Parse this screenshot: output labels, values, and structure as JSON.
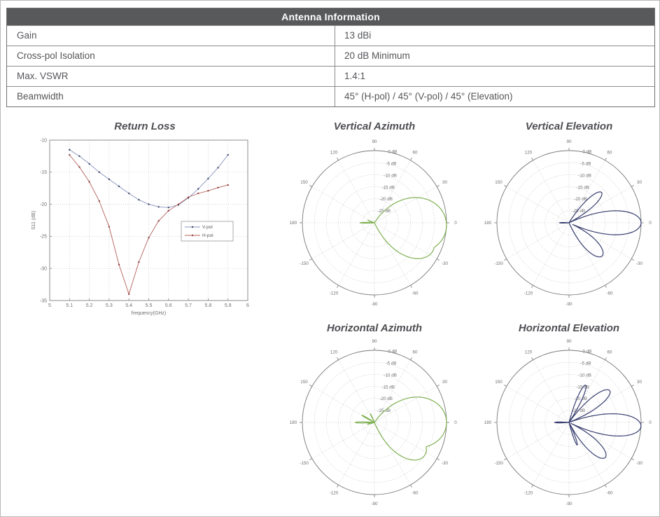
{
  "antenna_table": {
    "title": "Antenna Information",
    "rows": [
      {
        "label": "Gain",
        "value": "13 dBi"
      },
      {
        "label": "Cross-pol Isolation",
        "value": "20 dB Minimum"
      },
      {
        "label": "Max. VSWR",
        "value": "1.4:1"
      },
      {
        "label": "Beamwidth",
        "value": "45° (H-pol) / 45° (V-pol) / 45° (Elevation)"
      }
    ]
  },
  "colors": {
    "header_bg": "#58595B",
    "table_border": "#8A8C8E",
    "table_text": "#55565A",
    "title_text": "#4E4F53",
    "green": "#7FB052",
    "navy": "#373E6F",
    "axis": "#8C8C8C",
    "grid": "#C9C9C9",
    "tick_text": "#6E6E6E",
    "polar_grid": "#B5B5B5",
    "polar_outline": "#777777"
  },
  "chart_data": [
    {
      "id": "return_loss",
      "type": "line",
      "title": "Return Loss",
      "xlabel": "frequency(GHz)",
      "ylabel": "S11 (dB)",
      "xlim": [
        5,
        6
      ],
      "ylim": [
        -35,
        -10
      ],
      "xticks": [
        "5",
        "5.1",
        "5.2",
        "5.3",
        "5.4",
        "5.5",
        "5.6",
        "5.7",
        "5.8",
        "5.9",
        "6"
      ],
      "yticks": [
        "-10",
        "-15",
        "-20",
        "-25",
        "-30",
        "-35"
      ],
      "grid": true,
      "legend_position": "right-middle",
      "x": [
        5.1,
        5.15,
        5.2,
        5.25,
        5.3,
        5.35,
        5.4,
        5.45,
        5.5,
        5.55,
        5.6,
        5.65,
        5.7,
        5.75,
        5.8,
        5.85,
        5.9
      ],
      "series": [
        {
          "name": "V-pol",
          "color": "#8893BE",
          "marker_color": "#3C4566",
          "values": [
            -11.5,
            -12.5,
            -13.7,
            -15.0,
            -16.1,
            -17.2,
            -18.3,
            -19.3,
            -20.0,
            -20.4,
            -20.5,
            -20.1,
            -19.0,
            -17.6,
            -16.0,
            -14.3,
            -12.3
          ]
        },
        {
          "name": "H-pol",
          "color": "#B3615D",
          "marker_color": "#8F4340",
          "values": [
            -12.3,
            -14.2,
            -16.5,
            -19.5,
            -23.5,
            -29.4,
            -34.0,
            -29.0,
            -25.2,
            -22.6,
            -21.0,
            -20.0,
            -18.9,
            -18.3,
            -17.9,
            -17.4,
            -17.0
          ]
        }
      ]
    },
    {
      "id": "vertical_azimuth",
      "type": "polar",
      "title": "Vertical Azimuth",
      "color": "#7FB052",
      "rmax_db": 0,
      "rmin_db": -30,
      "angle_labels": [
        "0",
        "30",
        "60",
        "90",
        "120",
        "150",
        "180",
        "-150",
        "-120",
        "-90",
        "-60",
        "-30"
      ],
      "radial_labels": [
        "0 dB",
        "-5 dB",
        "-10 dB",
        "-15 dB",
        "-20 dB",
        "-25 dB"
      ],
      "lobes": [
        {
          "angle": -3,
          "peak_db": 0,
          "width_deg": 60
        },
        {
          "angle": -25,
          "peak_db": -3,
          "width_deg": 42
        },
        {
          "angle": 180,
          "peak_db": -24,
          "width_deg": 9
        },
        {
          "angle": 160,
          "peak_db": -27,
          "width_deg": 8
        }
      ]
    },
    {
      "id": "vertical_elevation",
      "type": "polar",
      "title": "Vertical Elevation",
      "color": "#373E6F",
      "rmax_db": 0,
      "rmin_db": -30,
      "angle_labels": [
        "0",
        "30",
        "60",
        "90",
        "120",
        "150",
        "180",
        "-150",
        "-120",
        "-90",
        "-60",
        "-30"
      ],
      "radial_labels": [
        "0 dB",
        "-5 dB",
        "-10 dB",
        "-15 dB",
        "-20 dB",
        "-25 dB"
      ],
      "lobes": [
        {
          "angle": 0,
          "peak_db": 0,
          "width_deg": 25
        },
        {
          "angle": 43,
          "peak_db": -11.5,
          "width_deg": 19
        },
        {
          "angle": -45,
          "peak_db": -10.5,
          "width_deg": 26
        },
        {
          "angle": 180,
          "peak_db": -26,
          "width_deg": 12
        }
      ]
    },
    {
      "id": "horizontal_azimuth",
      "type": "polar",
      "title": "Horizontal Azimuth",
      "color": "#7FB052",
      "rmax_db": 0,
      "rmin_db": -30,
      "angle_labels": [
        "0",
        "30",
        "60",
        "90",
        "120",
        "150",
        "180",
        "-150",
        "-120",
        "-90",
        "-60",
        "-30"
      ],
      "radial_labels": [
        "0 dB",
        "-5 dB",
        "-10 dB",
        "-15 dB",
        "-20 dB",
        "-25 dB"
      ],
      "lobes": [
        {
          "angle": 0,
          "peak_db": 0,
          "width_deg": 55
        },
        {
          "angle": -33,
          "peak_db": -5,
          "width_deg": 38
        },
        {
          "angle": 180,
          "peak_db": -22,
          "width_deg": 9
        },
        {
          "angle": 150,
          "peak_db": -24,
          "width_deg": 9
        },
        {
          "angle": 115,
          "peak_db": -26,
          "width_deg": 8
        },
        {
          "angle": -165,
          "peak_db": -27,
          "width_deg": 7
        }
      ]
    },
    {
      "id": "horizontal_elevation",
      "type": "polar",
      "title": "Horizontal Elevation",
      "color": "#373E6F",
      "rmax_db": 0,
      "rmin_db": -30,
      "angle_labels": [
        "0",
        "30",
        "60",
        "90",
        "120",
        "150",
        "180",
        "-150",
        "-120",
        "-90",
        "-60",
        "-30"
      ],
      "radial_labels": [
        "0 dB",
        "-5 dB",
        "-10 dB",
        "-15 dB",
        "-20 dB",
        "-25 dB"
      ],
      "lobes": [
        {
          "angle": -3,
          "peak_db": 0,
          "width_deg": 23
        },
        {
          "angle": 38,
          "peak_db": -8.5,
          "width_deg": 19
        },
        {
          "angle": 66,
          "peak_db": -13,
          "width_deg": 12
        },
        {
          "angle": -44,
          "peak_db": -9,
          "width_deg": 22
        },
        {
          "angle": -70,
          "peak_db": -20,
          "width_deg": 10
        },
        {
          "angle": 180,
          "peak_db": -24,
          "width_deg": 10
        }
      ]
    }
  ]
}
